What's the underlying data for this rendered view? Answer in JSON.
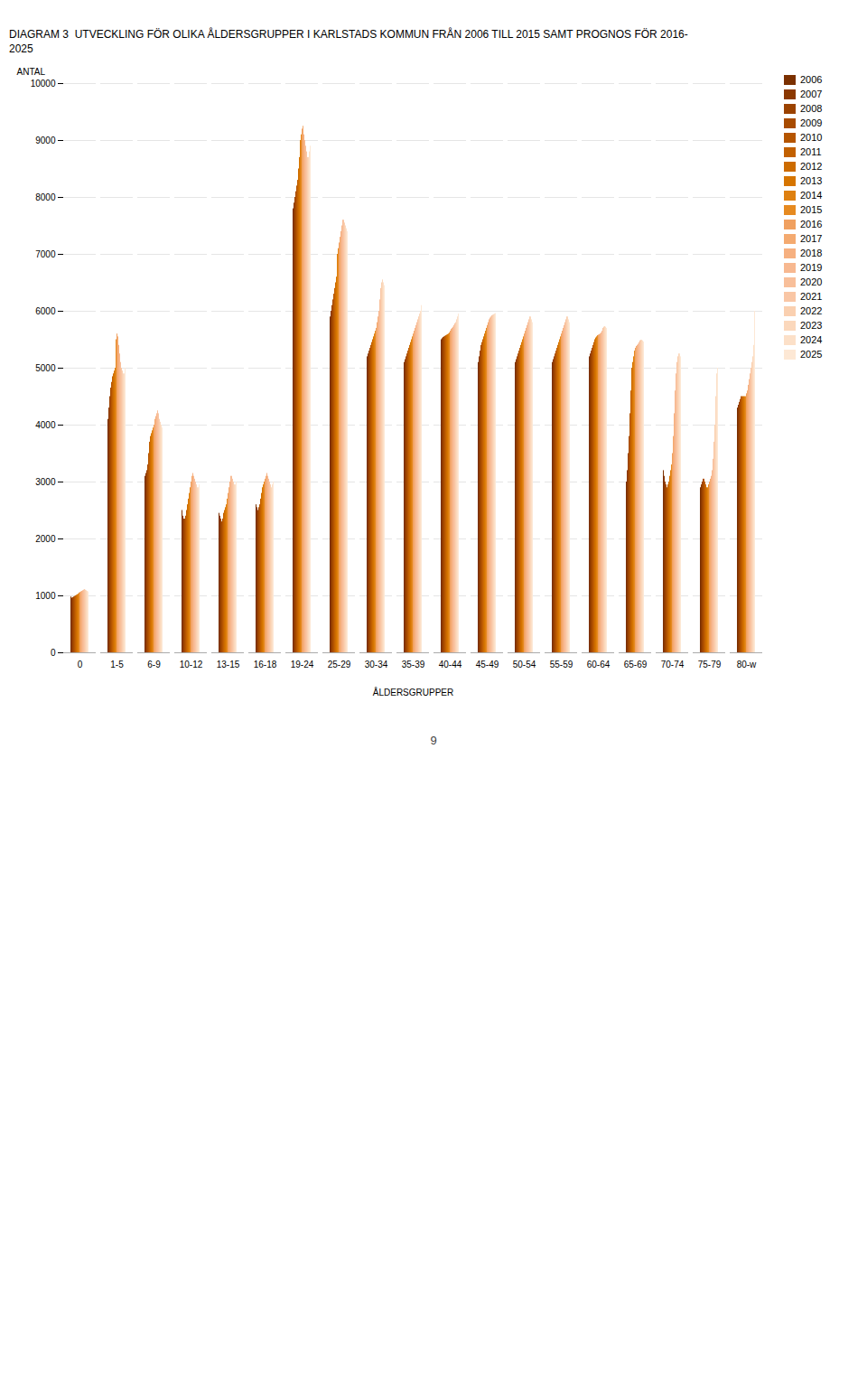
{
  "chart_data": {
    "type": "bar",
    "title": "DIAGRAM 3  UTVECKLING FÖR OLIKA ÅLDERSGRUPPER I KARLSTADS KOMMUN FRÅN 2006 TILL 2015 SAMT PROGNOS FÖR 2016-\n2025",
    "xlabel": "ÅLDERSGRUPPER",
    "ylabel": "ANTAL",
    "annotations": [
      "9"
    ],
    "categories": [
      "0",
      "1-5",
      "6-9",
      "10-12",
      "13-15",
      "16-18",
      "19-24",
      "25-29",
      "30-34",
      "35-39",
      "40-44",
      "45-49",
      "50-54",
      "55-59",
      "60-64",
      "65-69",
      "70-74",
      "75-79",
      "80-w"
    ],
    "series": [
      {
        "name": "2006",
        "color": "#7B3000",
        "values": [
          980,
          4100,
          3100,
          2500,
          2450,
          2600,
          7800,
          5900,
          5200,
          5100,
          5500,
          5100,
          5100,
          5100,
          5200,
          3000,
          3200,
          2900,
          4300
        ]
      },
      {
        "name": "2007",
        "color": "#8B3800",
        "values": [
          960,
          4300,
          3150,
          2400,
          2400,
          2550,
          7900,
          6000,
          5250,
          5150,
          5520,
          5200,
          5150,
          5150,
          5250,
          3200,
          3100,
          2950,
          4350
        ]
      },
      {
        "name": "2008",
        "color": "#9B4200",
        "values": [
          970,
          4500,
          3200,
          2350,
          2350,
          2500,
          8000,
          6100,
          5300,
          5200,
          5540,
          5300,
          5200,
          5200,
          5300,
          3500,
          3000,
          3000,
          4400
        ]
      },
      {
        "name": "2009",
        "color": "#A84B00",
        "values": [
          980,
          4650,
          3300,
          2350,
          2300,
          2550,
          8100,
          6200,
          5350,
          5250,
          5550,
          5400,
          5250,
          5250,
          5350,
          3800,
          2950,
          3050,
          4450
        ]
      },
      {
        "name": "2010",
        "color": "#B55500",
        "values": [
          990,
          4750,
          3500,
          2400,
          2350,
          2600,
          8200,
          6300,
          5400,
          5300,
          5560,
          5450,
          5300,
          5300,
          5400,
          4200,
          2900,
          3050,
          4500
        ]
      },
      {
        "name": "2011",
        "color": "#C26000",
        "values": [
          1000,
          4850,
          3700,
          2500,
          2450,
          2700,
          8300,
          6400,
          5450,
          5350,
          5570,
          5500,
          5350,
          5350,
          5450,
          4600,
          2950,
          3000,
          4500
        ]
      },
      {
        "name": "2012",
        "color": "#CC6B00",
        "values": [
          1010,
          4900,
          3800,
          2600,
          2500,
          2800,
          8500,
          6500,
          5500,
          5400,
          5580,
          5550,
          5400,
          5400,
          5500,
          5000,
          3000,
          2950,
          4500
        ]
      },
      {
        "name": "2013",
        "color": "#D67500",
        "values": [
          1020,
          4950,
          3850,
          2700,
          2550,
          2900,
          8700,
          6600,
          5550,
          5450,
          5590,
          5600,
          5450,
          5450,
          5530,
          5100,
          3100,
          2900,
          4500
        ]
      },
      {
        "name": "2014",
        "color": "#DE8010",
        "values": [
          1030,
          5000,
          3900,
          2800,
          2600,
          2950,
          9000,
          7000,
          5600,
          5500,
          5600,
          5650,
          5500,
          5500,
          5550,
          5200,
          3200,
          2900,
          4500
        ]
      },
      {
        "name": "2015",
        "color": "#E68A20",
        "values": [
          1050,
          5500,
          3950,
          2900,
          2700,
          3000,
          9100,
          7100,
          5650,
          5550,
          5620,
          5700,
          5550,
          5550,
          5570,
          5300,
          3300,
          2950,
          4500
        ]
      },
      {
        "name": "2016",
        "color": "#F0A060",
        "values": [
          1060,
          5600,
          4000,
          3000,
          2800,
          3050,
          9200,
          7200,
          5700,
          5600,
          5650,
          5750,
          5600,
          5600,
          5580,
          5350,
          3500,
          3000,
          4550
        ]
      },
      {
        "name": "2017",
        "color": "#F4AA70",
        "values": [
          1070,
          5550,
          4100,
          3100,
          2900,
          3100,
          9250,
          7300,
          5800,
          5650,
          5680,
          5800,
          5650,
          5650,
          5590,
          5380,
          3800,
          3050,
          4600
        ]
      },
      {
        "name": "2018",
        "color": "#F6B080",
        "values": [
          1080,
          5400,
          4150,
          3150,
          3000,
          3150,
          9100,
          7400,
          5900,
          5700,
          5700,
          5850,
          5700,
          5700,
          5600,
          5400,
          4200,
          3100,
          4700
        ]
      },
      {
        "name": "2019",
        "color": "#F7B890",
        "values": [
          1090,
          5250,
          4200,
          3100,
          3100,
          3100,
          9000,
          7500,
          6000,
          5750,
          5720,
          5880,
          5750,
          5750,
          5620,
          5420,
          4600,
          3200,
          4800
        ]
      },
      {
        "name": "2020",
        "color": "#F8BF9A",
        "values": [
          1100,
          5100,
          4250,
          3050,
          3100,
          3050,
          8900,
          7600,
          6200,
          5800,
          5750,
          5900,
          5800,
          5800,
          5650,
          5450,
          4900,
          3400,
          4900
        ]
      },
      {
        "name": "2021",
        "color": "#F9C6A5",
        "values": [
          1110,
          5000,
          4200,
          3000,
          3050,
          3000,
          8800,
          7600,
          6400,
          5850,
          5780,
          5920,
          5850,
          5850,
          5700,
          5480,
          5100,
          3700,
          5000
        ]
      },
      {
        "name": "2022",
        "color": "#FAD0B0",
        "values": [
          1100,
          4950,
          4100,
          2950,
          3000,
          2950,
          8700,
          7550,
          6500,
          5900,
          5800,
          5930,
          5900,
          5900,
          5720,
          5490,
          5200,
          4000,
          5100
        ]
      },
      {
        "name": "2023",
        "color": "#FBD8BC",
        "values": [
          1090,
          4900,
          4050,
          2900,
          2950,
          2900,
          8700,
          7500,
          6550,
          5950,
          5850,
          5940,
          5900,
          5900,
          5730,
          5490,
          5250,
          4500,
          5200
        ]
      },
      {
        "name": "2024",
        "color": "#FCE0C8",
        "values": [
          1080,
          4900,
          4000,
          2900,
          2950,
          2950,
          8800,
          7450,
          6500,
          6000,
          5900,
          5950,
          5850,
          5850,
          5720,
          5480,
          5250,
          4900,
          5400
        ]
      },
      {
        "name": "2025",
        "color": "#FDE8D5",
        "values": [
          1070,
          5000,
          3950,
          2950,
          3000,
          3000,
          8900,
          7400,
          6450,
          6100,
          5950,
          5960,
          5800,
          5800,
          5700,
          5460,
          5200,
          5000,
          6000
        ]
      }
    ],
    "ylim": [
      0,
      10000
    ],
    "yticks": [
      0,
      1000,
      2000,
      3000,
      4000,
      5000,
      6000,
      7000,
      8000,
      9000,
      10000
    ],
    "grid": true,
    "legend": "right"
  }
}
